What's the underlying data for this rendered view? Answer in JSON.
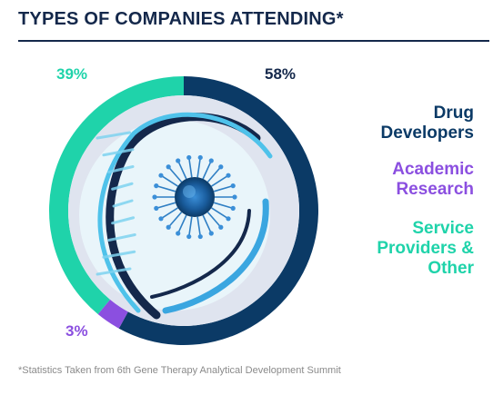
{
  "title": "TYPES OF COMPANIES ATTENDING*",
  "footnote": "*Statistics Taken from 6th Gene Therapy Analytical Development Summit",
  "colors": {
    "title": "#14284b",
    "drug": "#0b3a66",
    "academic": "#8b4fe0",
    "service": "#1fd3aa"
  },
  "chart_data": {
    "type": "pie",
    "title": "TYPES OF COMPANIES ATTENDING*",
    "slices": [
      {
        "label": "Drug Developers",
        "value": 58,
        "value_label": "58%",
        "color": "#0b3a66"
      },
      {
        "label": "Academic Research",
        "value": 3,
        "value_label": "3%",
        "color": "#8b4fe0"
      },
      {
        "label": "Service Providers & Other",
        "value": 39,
        "value_label": "39%",
        "color": "#1fd3aa"
      }
    ],
    "legend": {
      "position": "right",
      "lines": [
        [
          "Drug",
          "Developers"
        ],
        [
          "Academic",
          "Research"
        ],
        [
          "Service",
          "Providers &",
          "Other"
        ]
      ]
    }
  }
}
